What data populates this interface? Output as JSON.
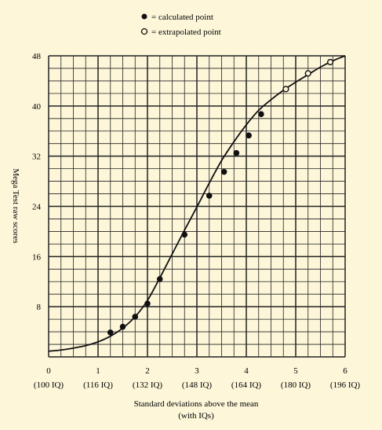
{
  "chart_data": {
    "type": "line",
    "title": "",
    "xlabel": "Standard deviations above the mean",
    "xlabel_sub": "(with IQs)",
    "ylabel": "Mega Test raw scores",
    "xlim": [
      0,
      6
    ],
    "ylim": [
      0,
      48
    ],
    "x_ticks": [
      "0",
      "1",
      "2",
      "3",
      "4",
      "5",
      "6"
    ],
    "x_iq_labels": [
      "(100 IQ)",
      "(116 IQ)",
      "(132 IQ)",
      "(148 IQ)",
      "(164 IQ)",
      "(180 IQ)",
      "(196 IQ)"
    ],
    "y_ticks": [
      "8",
      "16",
      "24",
      "32",
      "40",
      "48"
    ],
    "grid": true,
    "legend": {
      "position": "top",
      "calculated": "= calculated point",
      "extrapolated": "= extrapolated point"
    },
    "curve": {
      "x": [
        0,
        0.25,
        0.5,
        0.75,
        1.0,
        1.25,
        1.5,
        1.75,
        2.0,
        2.25,
        2.5,
        2.75,
        3.0,
        3.25,
        3.5,
        3.75,
        4.0,
        4.25,
        4.5,
        4.75,
        5.0,
        5.25,
        5.5,
        5.75,
        6.0
      ],
      "y": [
        0.9,
        1.1,
        1.4,
        1.8,
        2.4,
        3.3,
        4.6,
        6.4,
        9.0,
        12.6,
        16.4,
        20.2,
        23.9,
        27.7,
        31.3,
        34.3,
        37.0,
        39.3,
        41.0,
        42.5,
        43.8,
        45.0,
        46.2,
        47.2,
        48.0
      ]
    },
    "series": [
      {
        "name": "calculated point",
        "x": [
          1.25,
          1.5,
          1.75,
          2.0,
          2.25,
          2.75,
          3.25,
          3.55,
          3.8,
          4.05,
          4.3
        ],
        "y": [
          3.9,
          4.8,
          6.4,
          8.5,
          12.4,
          19.5,
          25.7,
          29.5,
          32.5,
          35.3,
          38.7
        ]
      },
      {
        "name": "extrapolated point",
        "x": [
          4.8,
          5.25,
          5.7
        ],
        "y": [
          42.7,
          45.2,
          47.0
        ]
      }
    ]
  }
}
